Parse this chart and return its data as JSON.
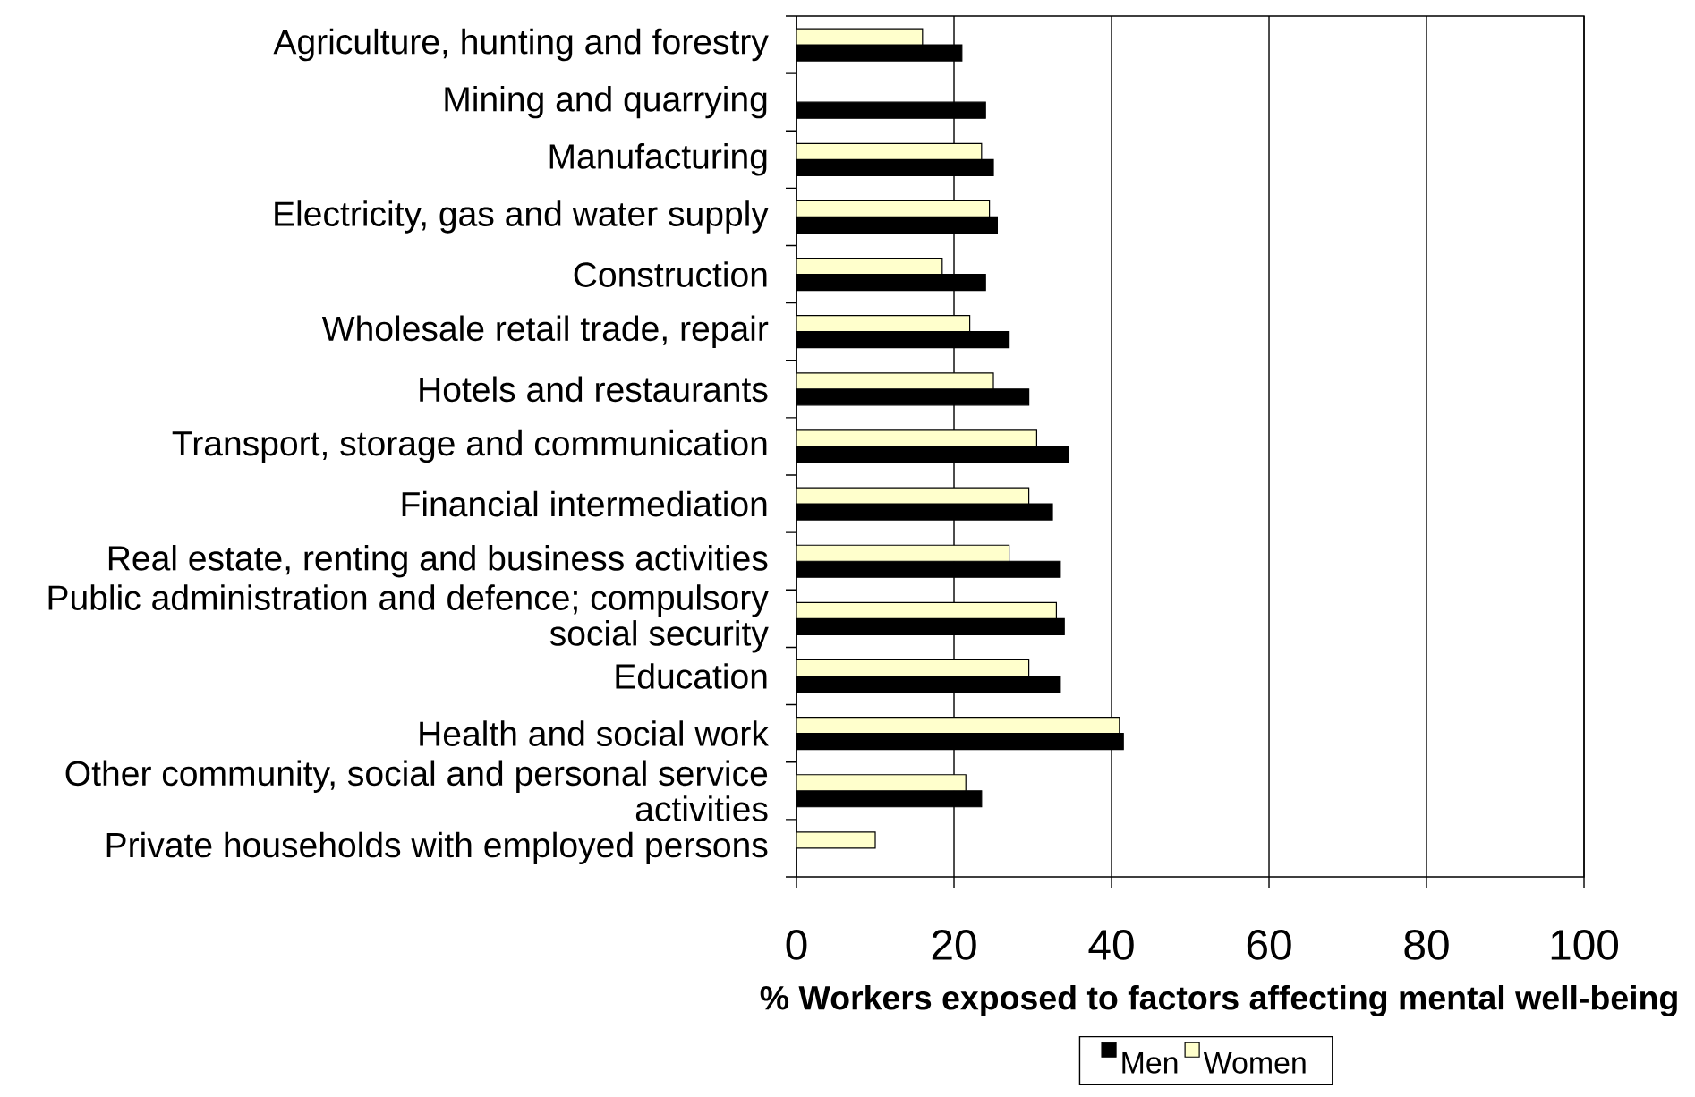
{
  "chart_data": {
    "type": "bar",
    "orientation": "horizontal",
    "categories": [
      "Agriculture, hunting and forestry",
      "Mining and quarrying",
      "Manufacturing",
      "Electricity, gas and water supply",
      "Construction",
      "Wholesale retail trade, repair",
      "Hotels and restaurants",
      "Transport, storage and communication",
      "Financial intermediation",
      "Real estate, renting and business activities",
      "Public administration and defence; compulsory social security",
      "Education",
      "Health and social work",
      "Other community, social and personal service activities",
      "Private households with employed persons"
    ],
    "series": [
      {
        "name": "Men",
        "color": "#000000",
        "values": [
          21,
          24,
          25,
          25.5,
          24,
          27,
          29.5,
          34.5,
          32.5,
          33.5,
          34,
          33.5,
          41.5,
          23.5,
          null
        ]
      },
      {
        "name": "Women",
        "color": "#ffffcc",
        "values": [
          16,
          null,
          23.5,
          24.5,
          18.5,
          22,
          25,
          30.5,
          29.5,
          27,
          33,
          29.5,
          41,
          21.5,
          10
        ]
      }
    ],
    "xlabel": "% Workers exposed to factors affecting mental well-being",
    "xlim": [
      0,
      100
    ],
    "xticks": [
      0,
      20,
      40,
      60,
      80,
      100
    ],
    "grid": "x",
    "legend": "bottom"
  }
}
